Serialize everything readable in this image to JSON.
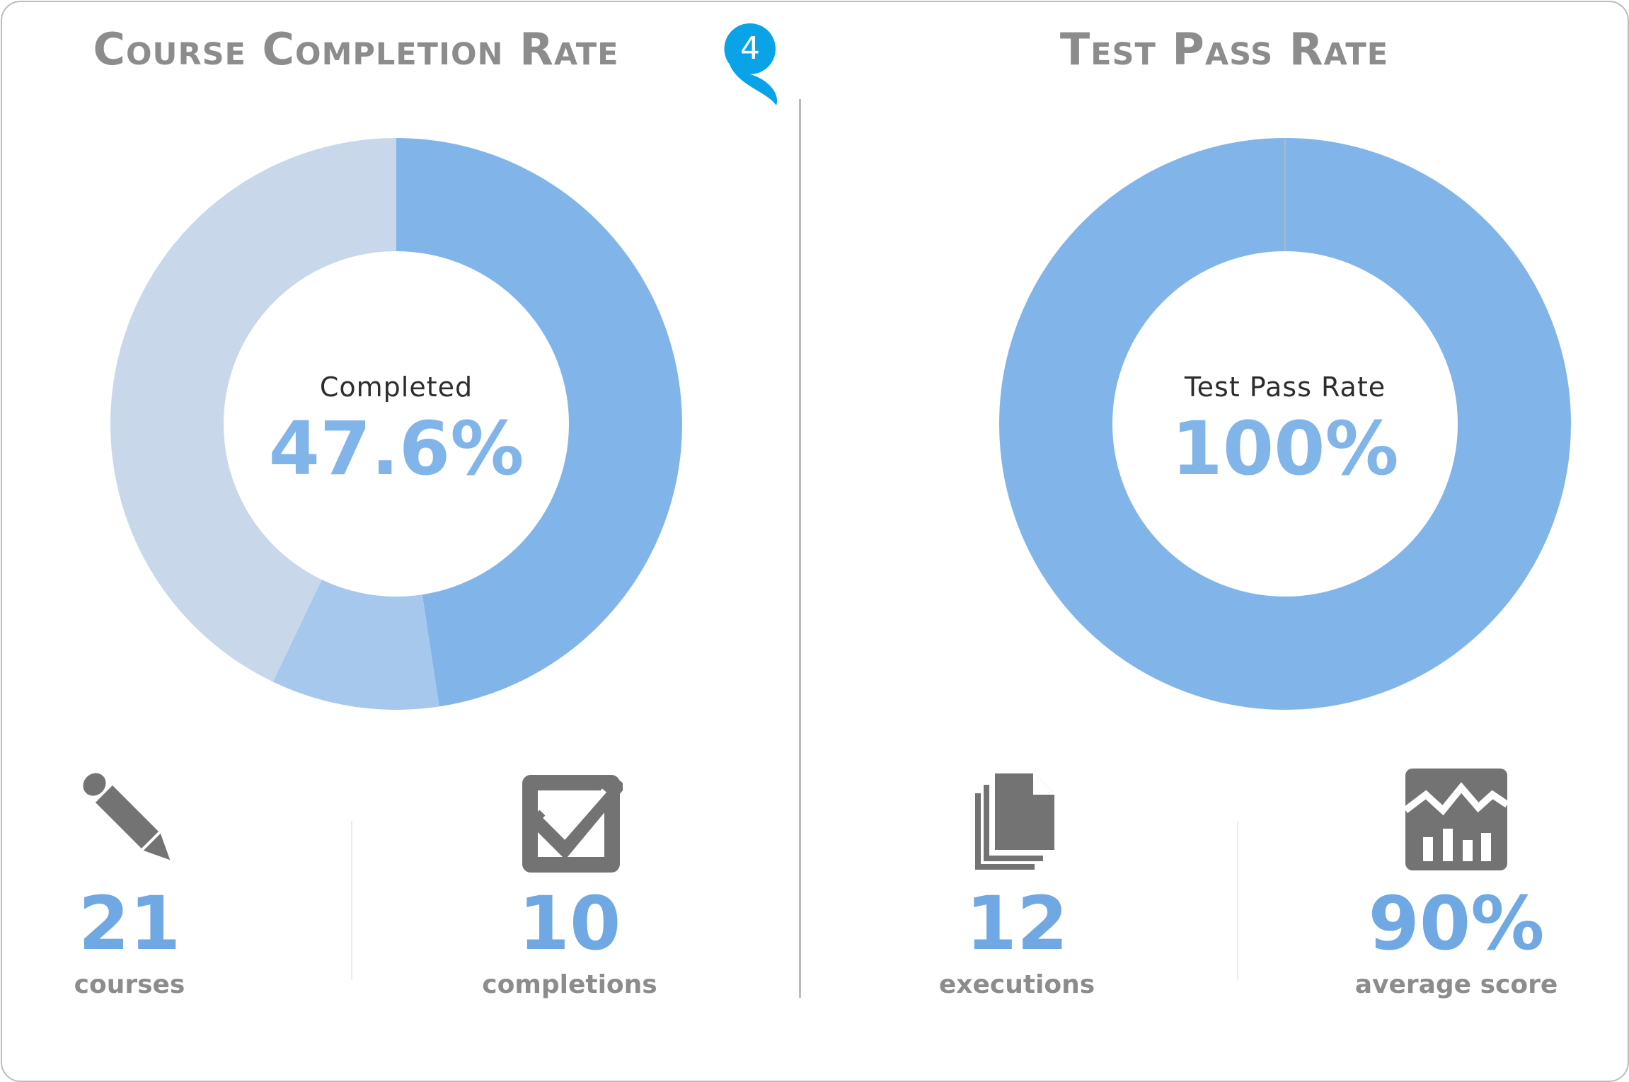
{
  "left_panel": {
    "title": "Course Completion Rate",
    "center_label": "Completed",
    "center_value": "47.6%",
    "stats": [
      {
        "icon": "pencil-icon",
        "value": "21",
        "label": "courses"
      },
      {
        "icon": "checkbox-icon",
        "value": "10",
        "label": "completions"
      }
    ]
  },
  "right_panel": {
    "title": "Test Pass Rate",
    "center_label": "Test Pass Rate",
    "center_value": "100%",
    "stats": [
      {
        "icon": "documents-icon",
        "value": "12",
        "label": "executions"
      },
      {
        "icon": "chart-icon",
        "value": "90%",
        "label": "average score"
      }
    ]
  },
  "marker": {
    "number": "4",
    "color": "#0aa3e8"
  },
  "chart_data": [
    {
      "type": "pie",
      "categories": [
        "Completed",
        "",
        ""
      ],
      "values": [
        47.6,
        9.5,
        42.9
      ],
      "colors": [
        "#81b5e9",
        "#a6c8ec",
        "#c8d8ea"
      ],
      "title": "Course Completion Rate"
    },
    {
      "type": "pie",
      "categories": [
        "Test Pass Rate"
      ],
      "values": [
        100
      ],
      "colors": [
        "#81b5e9"
      ],
      "title": "Test Pass Rate"
    }
  ],
  "colors": {
    "accent_blue": "#81b5e9",
    "value_blue": "#6fa8e2",
    "gray_text": "#8c8c8c",
    "icon_gray": "#737373"
  }
}
